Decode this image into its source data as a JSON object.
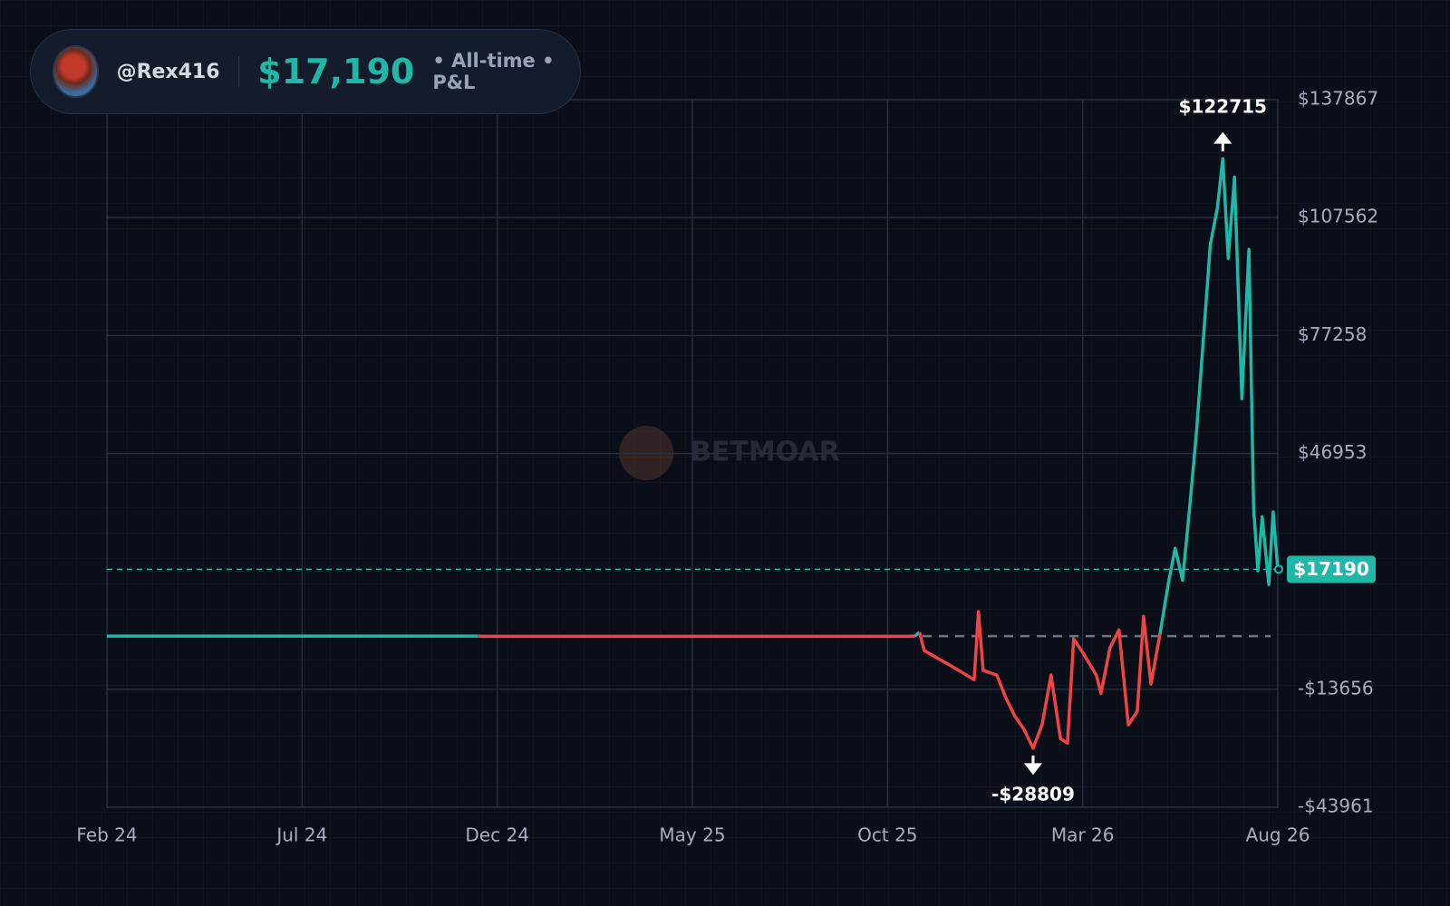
{
  "header": {
    "username": "@Rex416",
    "pnl": "$17,190",
    "period": "• All-time • P&L"
  },
  "watermark": "BETMOAR",
  "chart_data": {
    "type": "line",
    "x": [
      0,
      9.5,
      9.6,
      20.5,
      20.7,
      20.82,
      20.94,
      21.64,
      22.22,
      22.33,
      22.45,
      22.8,
      23.03,
      23.26,
      23.5,
      23.73,
      23.96,
      24.19,
      24.43,
      24.61,
      24.77,
      25.0,
      25.35,
      25.47,
      25.7,
      25.93,
      26.17,
      26.4,
      26.56,
      26.75,
      26.98,
      27.21,
      27.37,
      27.56,
      27.72,
      27.91,
      28.1,
      28.27,
      28.45,
      28.59,
      28.73,
      28.89,
      29.08,
      29.26,
      29.38,
      29.49,
      29.6,
      29.77,
      29.88,
      30
    ],
    "values": [
      0,
      0,
      -50,
      -50,
      0,
      1000,
      -3700,
      -7700,
      -11200,
      6300,
      -8800,
      -10000,
      -15800,
      -20500,
      -24000,
      -28809,
      -22800,
      -10000,
      -26300,
      -27500,
      -700,
      -4200,
      -10000,
      -14700,
      -3000,
      1600,
      -22800,
      -19300,
      5100,
      -12300,
      500,
      14400,
      22600,
      14400,
      30700,
      51700,
      77300,
      100600,
      109900,
      122715,
      97100,
      118000,
      61000,
      99400,
      33100,
      16800,
      30700,
      13300,
      31900,
      17190
    ],
    "color": "#1fb8a6",
    "negative_color": "#ef4444",
    "xlim": [
      0,
      30
    ],
    "xticks": [
      {
        "value": 0,
        "label": "Feb 24"
      },
      {
        "value": 5,
        "label": "Jul 24"
      },
      {
        "value": 10,
        "label": "Dec 24"
      },
      {
        "value": 15,
        "label": "May 25"
      },
      {
        "value": 20,
        "label": "Oct 25"
      },
      {
        "value": 25,
        "label": "Mar 26"
      },
      {
        "value": 30,
        "label": "Aug 26"
      }
    ],
    "ylim": [
      -43961,
      137867
    ],
    "yticks": [
      {
        "value": 137867,
        "label": "$137867"
      },
      {
        "value": 107562,
        "label": "$107562"
      },
      {
        "value": 77258,
        "label": "$77258"
      },
      {
        "value": 46953,
        "label": "$46953"
      },
      {
        "value": -13656,
        "label": "-$13656"
      },
      {
        "value": -43961,
        "label": "-$43961"
      }
    ],
    "grid": true,
    "max_annotation": {
      "x": 28.59,
      "value": 122715,
      "label": "$122715"
    },
    "min_annotation": {
      "x": 23.73,
      "value": -28809,
      "label": "-$28809"
    },
    "current": {
      "value": 17190,
      "label": "$17190"
    }
  }
}
